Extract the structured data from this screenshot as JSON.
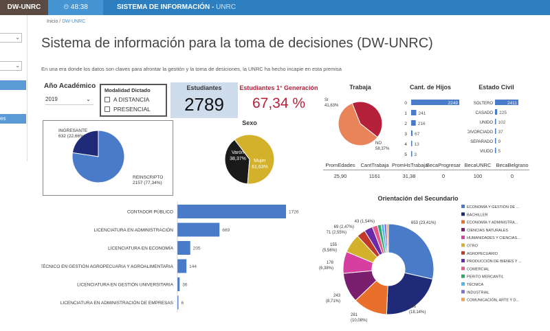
{
  "topbar": {
    "brand": "DW-UNRC",
    "clock": "48:38",
    "title": "SISTEMA DE INFORMACIÓN",
    "title_sub": "UNRC"
  },
  "sidebar": {
    "bars": [
      "",
      "es"
    ]
  },
  "breadcrumb": {
    "home": "Inicio",
    "sep": "/",
    "current": "DW-UNRC"
  },
  "page": {
    "title": "Sistema de información para la toma de decisiones (DW-UNRC)",
    "intro": "En una era donde los datos son claves para afrontar la gestión y la toma de desiciones, la UNRC ha hecho incapie en esta premisa"
  },
  "filters": {
    "year_label": "Año Académico",
    "year_value": "2019",
    "modality_label": "Modalidad Dictado",
    "modality_options": [
      "A DISTANCIA",
      "PRESENCIAL"
    ]
  },
  "kpis": {
    "students_label": "Estudiantes",
    "students_value": "2789",
    "first_gen_label": "Estudiantes 1° Generación",
    "first_gen_value": "67,34 %"
  },
  "chart_data": [
    {
      "type": "pie",
      "title": "",
      "labels": [
        "INGRESANTE",
        "REINSCRIPTO"
      ],
      "values": [
        632,
        2157
      ],
      "label_text": [
        "632 (22,66%)",
        "2157 (77,34%)"
      ],
      "colors": [
        "#1f2a78",
        "#4a7bc8"
      ]
    },
    {
      "type": "pie",
      "title": "Sexo",
      "labels": [
        "Varón",
        "Mujer"
      ],
      "values": [
        38.37,
        61.63
      ],
      "label_text": [
        "38,37%",
        "61,63%"
      ],
      "colors": [
        "#1a1a1a",
        "#d4b12a"
      ]
    },
    {
      "type": "pie",
      "title": "Trabaja",
      "labels": [
        "SI",
        "NO"
      ],
      "values": [
        41.63,
        58.37
      ],
      "label_text": [
        "41,63%",
        "58,37%"
      ],
      "colors": [
        "#b5213a",
        "#e8835a"
      ]
    },
    {
      "type": "bar",
      "title": "Cant. de Hijos",
      "categories": [
        "0",
        "1",
        "2",
        "3",
        "4",
        "5"
      ],
      "values": [
        2249,
        241,
        216,
        67,
        13,
        3
      ],
      "color": "#4a7bc8"
    },
    {
      "type": "bar",
      "title": "Estado Civil",
      "categories": [
        "SOLTERO",
        "CASADO",
        "UNIDO",
        "DIVORCIADO",
        "SEPARADO",
        "VIUDO"
      ],
      "values": [
        2411,
        225,
        102,
        37,
        9,
        5
      ],
      "color": "#4a7bc8"
    },
    {
      "type": "bar",
      "title": "",
      "categories": [
        "CONTADOR PÚBLICO",
        "LICENCIATURA EN ADMINISTRACIÓN",
        "LICENCIATURA EN ECONOMÍA",
        "TÉCNICO EN GESTIÓN AGROPECUARIA Y AGROALIMENTARIA",
        "LICENCIATURA EN GESTIÓN UNIVERSITARIA",
        "LICENCIATURA EN ADMINISTRACIÓN DE EMPRESAS"
      ],
      "values": [
        1726,
        669,
        205,
        144,
        36,
        6
      ],
      "color": "#4a7bc8"
    },
    {
      "type": "pie",
      "title": "Orientación del Secundario",
      "labels": [
        "ECONOMÍA Y GESTIÓN DE ...",
        "BACHILLER",
        "ECONOMÍA Y ADMINISTRA...",
        "CIENCIAS NATURALES",
        "HUMANIDADES Y CIENCIAS...",
        "OTRO",
        "AGROPECUARIO",
        "PRODUCCIÓN DE BIENES Y ...",
        "COMERCIAL",
        "PERITO MERCANTIL",
        "TÉCNICA",
        "INDUSTRIAL",
        "COMUNICACIÓN, ARTE Y D..."
      ],
      "values": [
        653,
        506,
        281,
        243,
        178,
        155,
        71,
        69,
        43,
        30,
        25,
        20,
        15
      ],
      "label_text": [
        "653 (23,41%)",
        "506 (18,14%)",
        "281 (10,08%)",
        "243 (8,71%)",
        "178 (6,38%)",
        "155 (5,56%)",
        "71 (2,55%)",
        "69 (2,47%)",
        "43 (1,54%)",
        "",
        "",
        "",
        ""
      ],
      "colors": [
        "#4a7bc8",
        "#1f2a78",
        "#e8702a",
        "#7a1f6e",
        "#d63fa0",
        "#d4b12a",
        "#c0392b",
        "#6a2aa8",
        "#e55a8a",
        "#2ea86a",
        "#4fb8e8",
        "#8a6ad4",
        "#f0a050"
      ]
    }
  ],
  "metrics": {
    "headers": [
      "PromEdades",
      "CantTrabaja",
      "PromHsTrabaja",
      "BecaProgresar",
      "BecaUNRC",
      "BecaBelgrano"
    ],
    "values": [
      "25,90",
      "1161",
      "31,38",
      "0",
      "100",
      "0"
    ]
  },
  "colors": {
    "topbar": "#2e7fc0",
    "accent_red": "#b5213a",
    "kpi_bg": "#cfdcec"
  }
}
